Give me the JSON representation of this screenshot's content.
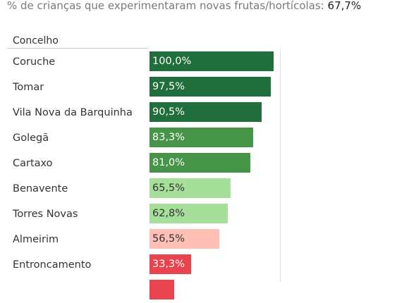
{
  "summary": {
    "label": "% de crianças que experimentaram novas frutas/hortícolas:",
    "value": "67,7%"
  },
  "chart_data": {
    "type": "bar",
    "orientation": "horizontal",
    "category_header": "Concelho",
    "xlim": [
      0,
      100
    ],
    "grid": false,
    "categories": [
      "Coruche",
      "Tomar",
      "Vila Nova da Barquinha",
      "Golegã",
      "Cartaxo",
      "Benavente",
      "Torres Novas",
      "Almeirim",
      "Entroncamento",
      ""
    ],
    "values": [
      100.0,
      97.5,
      90.5,
      83.3,
      81.0,
      65.5,
      62.8,
      56.5,
      33.3,
      20.0
    ],
    "value_labels": [
      "100,0%",
      "97,5%",
      "90,5%",
      "83,3%",
      "81,0%",
      "65,5%",
      "62,8%",
      "56,5%",
      "33,3%",
      ""
    ],
    "bar_colors": [
      "#216e3d",
      "#216e3d",
      "#216e3d",
      "#459448",
      "#459448",
      "#a5df99",
      "#a5df99",
      "#ffbfb5",
      "#e8434e",
      "#e8434e"
    ],
    "label_colors": [
      "#ffffff",
      "#ffffff",
      "#ffffff",
      "#ffffff",
      "#ffffff",
      "#333333",
      "#333333",
      "#333333",
      "#ffffff",
      "#ffffff"
    ]
  }
}
